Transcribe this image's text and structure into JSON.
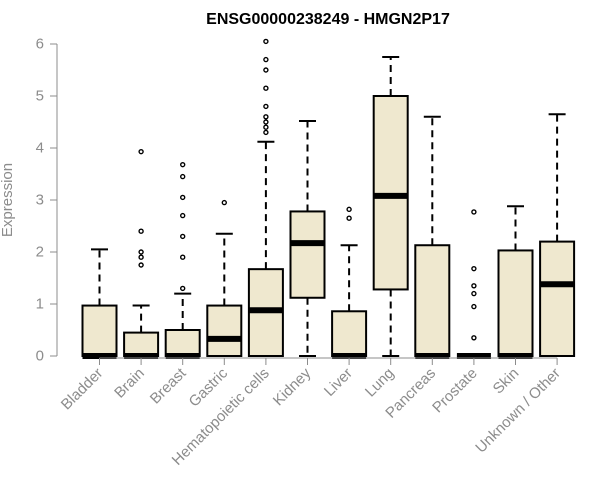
{
  "chart_data": {
    "type": "boxplot",
    "title": "ENSG00000238249 - HMGN2P17",
    "xlabel": "",
    "ylabel": "Expression",
    "ylim": [
      0,
      6
    ],
    "yticks": [
      0,
      1,
      2,
      3,
      4,
      5,
      6
    ],
    "grid": false,
    "legend": "none",
    "colors": {
      "box_fill": "#efe8cf",
      "stroke": "#000000",
      "text": "#8c8c8c",
      "title": "#000000"
    },
    "categories": [
      "Bladder",
      "Brain",
      "Breast",
      "Gastric",
      "Hematopoietic cells",
      "Kidney",
      "Liver",
      "Lung",
      "Pancreas",
      "Prostate",
      "Skin",
      "Unknown / Other"
    ],
    "boxes": [
      {
        "category": "Bladder",
        "whisker_low": 0,
        "q1": 0,
        "median": 0,
        "q3": 0.97,
        "whisker_high": 2.05,
        "outliers": []
      },
      {
        "category": "Brain",
        "whisker_low": 0,
        "q1": 0,
        "median": 0,
        "q3": 0.45,
        "whisker_high": 0.97,
        "outliers": [
          1.75,
          1.9,
          2.0,
          2.4,
          3.93
        ]
      },
      {
        "category": "Breast",
        "whisker_low": 0,
        "q1": 0,
        "median": 0,
        "q3": 0.5,
        "whisker_high": 1.2,
        "outliers": [
          1.3,
          1.9,
          2.3,
          2.7,
          3.05,
          3.45,
          3.68
        ]
      },
      {
        "category": "Gastric",
        "whisker_low": 0,
        "q1": 0,
        "median": 0.33,
        "q3": 0.97,
        "whisker_high": 2.35,
        "outliers": [
          2.95
        ]
      },
      {
        "category": "Hematopoietic cells",
        "whisker_low": 0,
        "q1": 0,
        "median": 0.88,
        "q3": 1.67,
        "whisker_high": 4.12,
        "outliers": [
          4.3,
          4.4,
          4.5,
          4.6,
          4.8,
          5.15,
          5.5,
          5.7,
          6.05
        ]
      },
      {
        "category": "Kidney",
        "whisker_low": 0,
        "q1": 1.12,
        "median": 2.17,
        "q3": 2.78,
        "whisker_high": 4.52,
        "outliers": []
      },
      {
        "category": "Liver",
        "whisker_low": 0,
        "q1": 0,
        "median": 0,
        "q3": 0.86,
        "whisker_high": 2.13,
        "outliers": [
          2.65,
          2.82
        ]
      },
      {
        "category": "Lung",
        "whisker_low": 0,
        "q1": 1.28,
        "median": 3.08,
        "q3": 5.0,
        "whisker_high": 5.75,
        "outliers": []
      },
      {
        "category": "Pancreas",
        "whisker_low": 0,
        "q1": 0,
        "median": 0,
        "q3": 2.13,
        "whisker_high": 4.6,
        "outliers": []
      },
      {
        "category": "Prostate",
        "whisker_low": 0,
        "q1": 0,
        "median": 0,
        "q3": 0,
        "whisker_high": 0,
        "outliers": [
          0.35,
          0.95,
          1.2,
          1.35,
          1.68,
          2.77
        ]
      },
      {
        "category": "Skin",
        "whisker_low": 0,
        "q1": 0,
        "median": 0,
        "q3": 2.03,
        "whisker_high": 2.88,
        "outliers": []
      },
      {
        "category": "Unknown / Other",
        "whisker_low": 0,
        "q1": 0,
        "median": 1.38,
        "q3": 2.2,
        "whisker_high": 4.65,
        "outliers": []
      }
    ]
  }
}
